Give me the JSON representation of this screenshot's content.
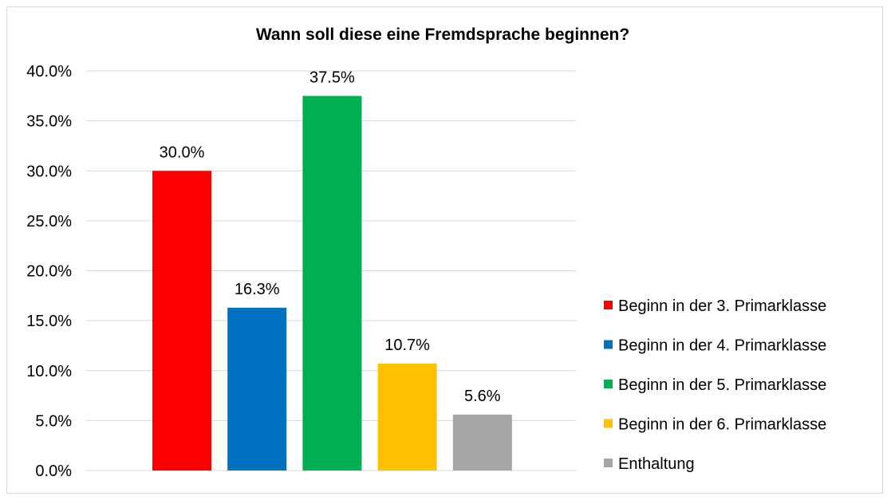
{
  "chart_data": {
    "type": "bar",
    "title": "Wann soll diese eine Fremdsprache beginnen?",
    "xlabel": "",
    "ylabel": "",
    "ylim": [
      0,
      40
    ],
    "yticks": [
      "0.0%",
      "5.0%",
      "10.0%",
      "15.0%",
      "20.0%",
      "25.0%",
      "30.0%",
      "35.0%",
      "40.0%"
    ],
    "grid": true,
    "legend_position": "right",
    "categories": [
      "Beginn in der 3. Primarklasse",
      "Beginn in der 4. Primarklasse",
      "Beginn in der 5. Primarklasse",
      "Beginn in der 6. Primarklasse",
      "Enthaltung"
    ],
    "values": [
      30.0,
      16.3,
      37.5,
      10.7,
      5.6
    ],
    "data_labels": [
      "30.0%",
      "16.3%",
      "37.5%",
      "10.7%",
      "5.6%"
    ],
    "colors": [
      "#FF0000",
      "#0070C0",
      "#00B050",
      "#FFC000",
      "#A5A5A5"
    ]
  }
}
